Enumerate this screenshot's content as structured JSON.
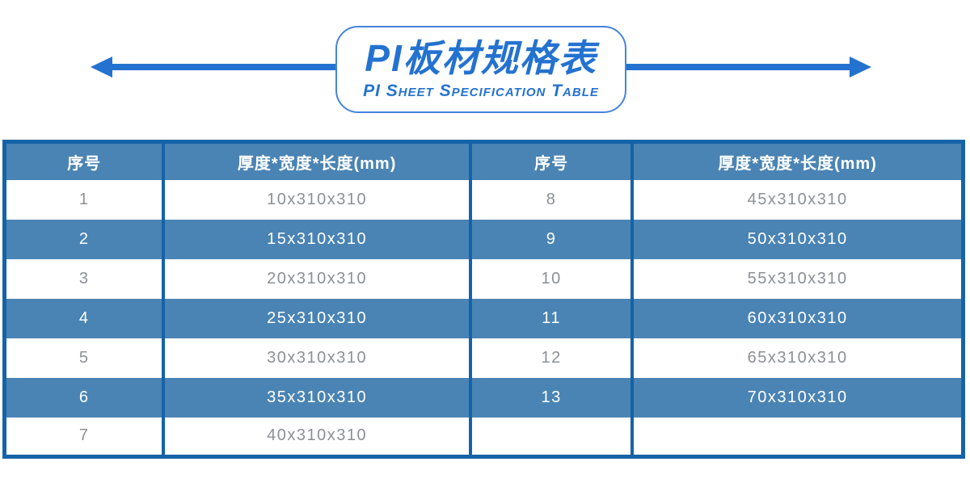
{
  "header": {
    "title": "PI板材规格表",
    "subtitle": "PI Sheet Specification Table"
  },
  "icons": {
    "left_arrow": "left-pointing-arrow",
    "right_arrow": "right-pointing-arrow"
  },
  "colors": {
    "accent_blue": "#2472D0",
    "title_border": "#4584DB",
    "table_fill": "#4A84B4",
    "table_border": "#1563A8",
    "muted_text": "#8C9095",
    "header_text": "#FFFFFF"
  },
  "table": {
    "columns": [
      "序号",
      "厚度*宽度*长度(mm)",
      "序号",
      "厚度*宽度*长度(mm)"
    ],
    "rows": [
      [
        "1",
        "10x310x310",
        "8",
        "45x310x310"
      ],
      [
        "2",
        "15x310x310",
        "9",
        "50x310x310"
      ],
      [
        "3",
        "20x310x310",
        "10",
        "55x310x310"
      ],
      [
        "4",
        "25x310x310",
        "11",
        "60x310x310"
      ],
      [
        "5",
        "30x310x310",
        "12",
        "65x310x310"
      ],
      [
        "6",
        "35x310x310",
        "13",
        "70x310x310"
      ],
      [
        "7",
        "40x310x310",
        "",
        ""
      ]
    ]
  }
}
